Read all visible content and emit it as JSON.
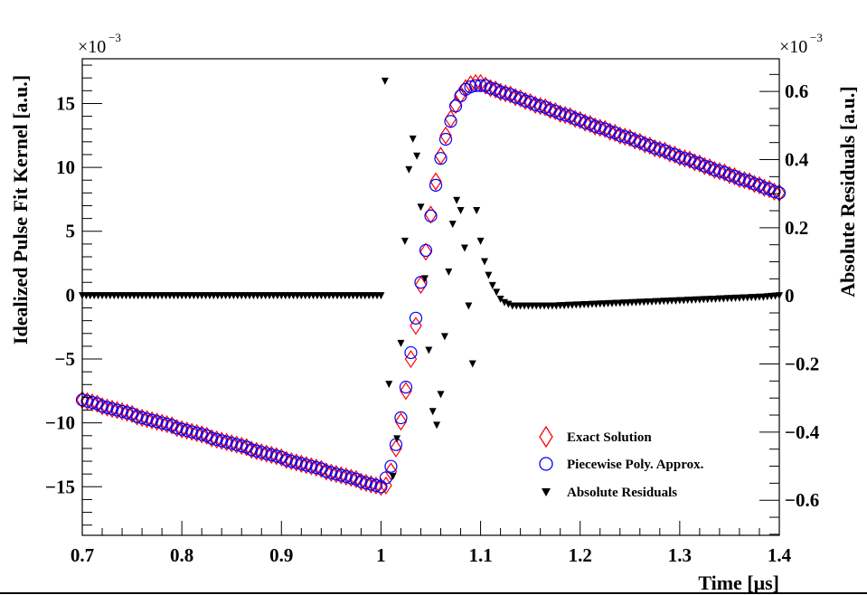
{
  "chart_data": {
    "type": "scatter",
    "title": "",
    "xlabel": "Time [μs]",
    "ylabel": "Idealized Pulse Fit Kernel [a.u.]",
    "y2label": "Absolute Residuals [a.u.]",
    "y_multiplier": "×10",
    "y_multiplier_exp": "−3",
    "y2_multiplier": "×10",
    "y2_multiplier_exp": "−3",
    "xlim": [
      0.7,
      1.4
    ],
    "ylim": [
      -18.8,
      18.5
    ],
    "y2lim": [
      -0.703,
      0.696
    ],
    "grid": false,
    "legend_placement": "bottom-right",
    "x_ticks": [
      0.7,
      0.8,
      0.9,
      1.0,
      1.1,
      1.2,
      1.3,
      1.4
    ],
    "x_tick_labels": [
      "0.7",
      "0.8",
      "0.9",
      "1",
      "1.1",
      "1.2",
      "1.3",
      "1.4"
    ],
    "y_ticks": [
      -15,
      -10,
      -5,
      0,
      5,
      10,
      15
    ],
    "y_tick_labels": [
      "−15",
      "−10",
      "−5",
      "0",
      "5",
      "10",
      "15"
    ],
    "y2_ticks": [
      -0.6,
      -0.4,
      -0.2,
      0,
      0.2,
      0.4,
      0.6
    ],
    "y2_tick_labels": [
      "−0.6",
      "−0.4",
      "−0.2",
      "0",
      "0.2",
      "0.4",
      "0.6"
    ],
    "x_start": 0.7,
    "x_step": 0.005,
    "series": [
      {
        "name": "Exact Solution",
        "marker": "open-diamond",
        "color": "#ff0000",
        "axis": "left",
        "values": [
          -8.2,
          -8.3,
          -8.4,
          -8.5,
          -8.7,
          -8.8,
          -8.9,
          -9.0,
          -9.1,
          -9.2,
          -9.3,
          -9.5,
          -9.6,
          -9.7,
          -9.8,
          -9.9,
          -10.0,
          -10.1,
          -10.2,
          -10.4,
          -10.5,
          -10.6,
          -10.7,
          -10.8,
          -10.9,
          -11.0,
          -11.2,
          -11.3,
          -11.4,
          -11.5,
          -11.6,
          -11.7,
          -11.8,
          -11.9,
          -12.1,
          -12.2,
          -12.3,
          -12.4,
          -12.5,
          -12.6,
          -12.7,
          -12.9,
          -13.0,
          -13.1,
          -13.2,
          -13.3,
          -13.4,
          -13.5,
          -13.6,
          -13.8,
          -13.9,
          -14.0,
          -14.1,
          -14.2,
          -14.3,
          -14.4,
          -14.6,
          -14.7,
          -14.8,
          -14.9,
          -15.0,
          -14.9,
          -13.8,
          -12.0,
          -9.9,
          -7.5,
          -5.0,
          -2.4,
          0.8,
          3.4,
          6.3,
          8.9,
          10.9,
          12.5,
          13.8,
          14.9,
          15.7,
          16.2,
          16.5,
          16.6,
          16.6,
          16.4,
          16.2,
          16.1,
          15.9,
          15.8,
          15.7,
          15.5,
          15.4,
          15.2,
          15.1,
          14.9,
          14.8,
          14.7,
          14.5,
          14.4,
          14.2,
          14.1,
          14.0,
          13.8,
          13.7,
          13.5,
          13.4,
          13.2,
          13.1,
          13.0,
          12.8,
          12.7,
          12.5,
          12.4,
          12.3,
          12.1,
          12.0,
          11.8,
          11.7,
          11.5,
          11.4,
          11.3,
          11.1,
          11.0,
          10.8,
          10.7,
          10.6,
          10.4,
          10.3,
          10.1,
          10.0,
          9.8,
          9.7,
          9.6,
          9.4,
          9.3,
          9.1,
          9.0,
          8.9,
          8.7,
          8.6,
          8.4,
          8.3,
          8.1,
          8.0
        ]
      },
      {
        "name": "Piecewise Poly. Approx.",
        "marker": "open-circle",
        "color": "#0000ff",
        "axis": "left",
        "values": [
          -8.2,
          -8.3,
          -8.4,
          -8.5,
          -8.7,
          -8.8,
          -8.9,
          -9.0,
          -9.1,
          -9.2,
          -9.3,
          -9.5,
          -9.6,
          -9.7,
          -9.8,
          -9.9,
          -10.0,
          -10.1,
          -10.2,
          -10.4,
          -10.5,
          -10.6,
          -10.7,
          -10.8,
          -10.9,
          -11.0,
          -11.2,
          -11.3,
          -11.4,
          -11.5,
          -11.6,
          -11.7,
          -11.8,
          -11.9,
          -12.1,
          -12.2,
          -12.3,
          -12.4,
          -12.5,
          -12.6,
          -12.7,
          -12.9,
          -13.0,
          -13.1,
          -13.2,
          -13.3,
          -13.4,
          -13.5,
          -13.6,
          -13.8,
          -13.9,
          -14.0,
          -14.1,
          -14.2,
          -14.3,
          -14.4,
          -14.6,
          -14.7,
          -14.8,
          -14.9,
          -15.0,
          -14.3,
          -13.4,
          -11.7,
          -9.6,
          -7.2,
          -4.5,
          -1.8,
          1.0,
          3.5,
          6.2,
          8.6,
          10.7,
          12.2,
          13.6,
          14.8,
          15.6,
          16.1,
          16.3,
          16.4,
          16.4,
          16.4,
          16.2,
          16.1,
          15.9,
          15.8,
          15.7,
          15.5,
          15.4,
          15.2,
          15.1,
          14.9,
          14.8,
          14.7,
          14.5,
          14.4,
          14.2,
          14.1,
          14.0,
          13.8,
          13.7,
          13.5,
          13.4,
          13.2,
          13.1,
          13.0,
          12.8,
          12.7,
          12.5,
          12.4,
          12.3,
          12.1,
          12.0,
          11.8,
          11.7,
          11.5,
          11.4,
          11.3,
          11.1,
          11.0,
          10.8,
          10.7,
          10.6,
          10.4,
          10.3,
          10.1,
          10.0,
          9.8,
          9.7,
          9.6,
          9.4,
          9.3,
          9.1,
          9.0,
          8.9,
          8.7,
          8.6,
          8.4,
          8.3,
          8.1,
          8.0
        ]
      },
      {
        "name": "Absolute Residuals",
        "marker": "filled-triangle-down",
        "color": "#000000",
        "axis": "right",
        "x_start": 0.7,
        "x_step": 0.004,
        "values": [
          0,
          0,
          0,
          0,
          0,
          0,
          0,
          0,
          0,
          0,
          0,
          0,
          0,
          0,
          0,
          0,
          0,
          0,
          0,
          0,
          0,
          0,
          0,
          0,
          0,
          0,
          0,
          0,
          0,
          0,
          0,
          0,
          0,
          0,
          0,
          0,
          0,
          0,
          0,
          0,
          0,
          0,
          0,
          0,
          0,
          0,
          0,
          0,
          0,
          0,
          0,
          0,
          0,
          0,
          0,
          0,
          0,
          0,
          0,
          0,
          0,
          0,
          0,
          0,
          0,
          0,
          0,
          0,
          0,
          0,
          0,
          0,
          0,
          0,
          0,
          0,
          0.63,
          -0.26,
          -0.53,
          -0.42,
          -0.14,
          0.16,
          0.37,
          0.46,
          0.41,
          0.26,
          0.05,
          -0.16,
          -0.34,
          -0.38,
          -0.29,
          -0.12,
          0.07,
          0.21,
          0.28,
          0.25,
          0.14,
          -0.03,
          -0.2,
          0.25,
          0.16,
          0.1,
          0.06,
          0.03,
          0.01,
          -0.01,
          -0.02,
          -0.025,
          -0.03,
          -0.03,
          -0.03,
          -0.03,
          -0.03,
          -0.03,
          -0.03,
          -0.03,
          -0.03,
          -0.03,
          -0.03,
          -0.03,
          -0.029,
          -0.029,
          -0.028,
          -0.028,
          -0.027,
          -0.027,
          -0.026,
          -0.026,
          -0.025,
          -0.025,
          -0.024,
          -0.024,
          -0.023,
          -0.023,
          -0.022,
          -0.022,
          -0.021,
          -0.021,
          -0.02,
          -0.02,
          -0.019,
          -0.019,
          -0.018,
          -0.018,
          -0.017,
          -0.017,
          -0.016,
          -0.016,
          -0.015,
          -0.015,
          -0.014,
          -0.014,
          -0.013,
          -0.013,
          -0.012,
          -0.012,
          -0.011,
          -0.011,
          -0.01,
          -0.01,
          -0.009,
          -0.009,
          -0.008,
          -0.008,
          -0.007,
          -0.007,
          -0.006,
          -0.006,
          -0.005,
          -0.005,
          -0.004,
          -0.004,
          -0.003,
          -0.002,
          -0.001,
          0.0
        ]
      }
    ]
  }
}
